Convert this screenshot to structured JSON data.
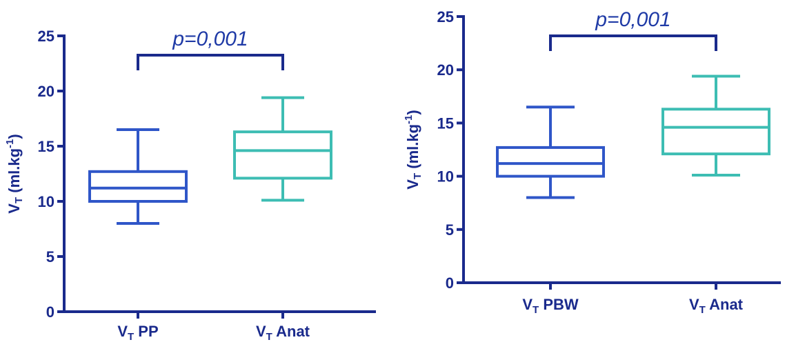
{
  "colors": {
    "axis": "#1a2a8c",
    "series_a": "#2f56c8",
    "series_b": "#3dbdb3",
    "bracket": "#1a2a8c",
    "pvalue": "#1f3aa6"
  },
  "chart_data": [
    {
      "type": "boxplot",
      "ylabel": "V_T (ml.kg^-1)",
      "ylim": [
        0,
        25
      ],
      "yticks": [
        0,
        5,
        10,
        15,
        20,
        25
      ],
      "categories": [
        {
          "label_main": "V",
          "label_sub": "T",
          "label_rest": " PP",
          "min": 8,
          "q1": 10,
          "median": 11.2,
          "q3": 12.7,
          "max": 16.5,
          "color_key": "series_a"
        },
        {
          "label_main": "V",
          "label_sub": "T",
          "label_rest": " Anat",
          "min": 10.1,
          "q1": 12.1,
          "median": 14.6,
          "q3": 16.3,
          "max": 19.4,
          "color_key": "series_b"
        }
      ],
      "annotation": {
        "text": "p=0,001",
        "between": [
          0,
          1
        ]
      }
    },
    {
      "type": "boxplot",
      "ylabel": "V_T (ml.kg^-1)",
      "ylim": [
        0,
        25
      ],
      "yticks": [
        0,
        5,
        10,
        15,
        20,
        25
      ],
      "categories": [
        {
          "label_main": "V",
          "label_sub": "T",
          "label_rest": " PBW",
          "min": 8,
          "q1": 10,
          "median": 11.2,
          "q3": 12.7,
          "max": 16.5,
          "color_key": "series_a"
        },
        {
          "label_main": "V",
          "label_sub": "T",
          "label_rest": " Anat",
          "min": 10.1,
          "q1": 12.1,
          "median": 14.6,
          "q3": 16.3,
          "max": 19.4,
          "color_key": "series_b"
        }
      ],
      "annotation": {
        "text": "p=0,001",
        "between": [
          0,
          1
        ]
      }
    }
  ]
}
